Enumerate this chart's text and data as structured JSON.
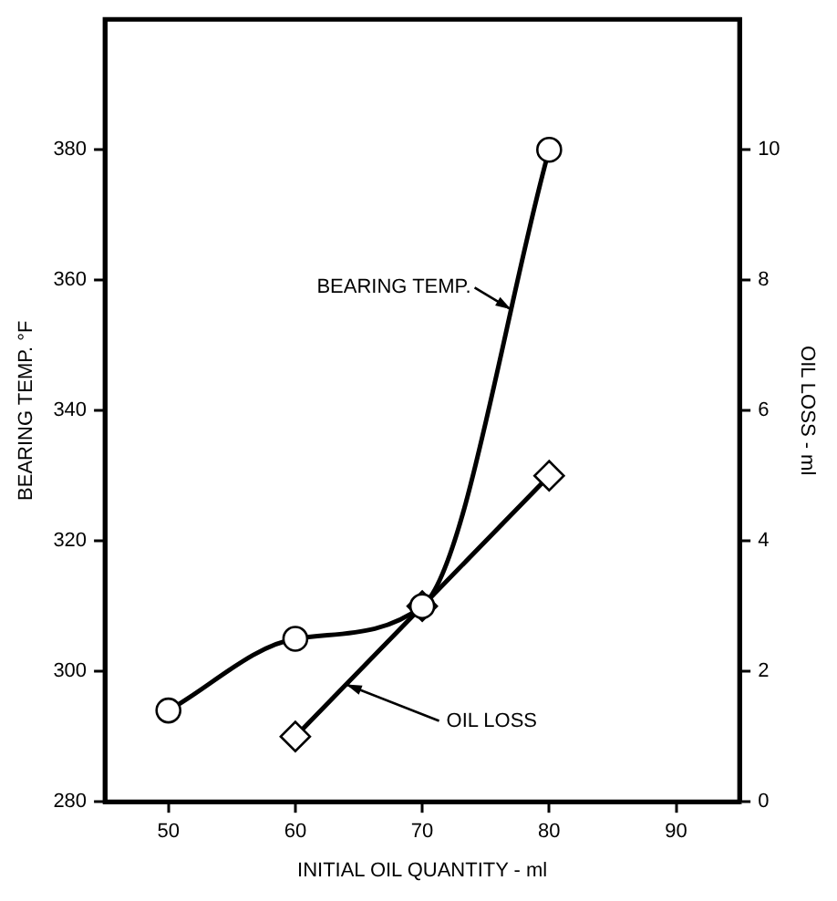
{
  "chart_data": {
    "type": "line",
    "xlabel": "INITIAL OIL QUANTITY - ml",
    "ylabel": "BEARING TEMP. °F",
    "y2label": "OIL LOSS - ml",
    "xlim": [
      45,
      95
    ],
    "xticks": [
      50,
      60,
      70,
      80,
      90
    ],
    "ylim": [
      280,
      400
    ],
    "yticks": [
      280,
      300,
      320,
      340,
      360,
      380
    ],
    "y2lim": [
      0,
      12
    ],
    "y2ticks": [
      0,
      2,
      4,
      6,
      8,
      10
    ],
    "series": [
      {
        "color": "#000000",
        "x": [
          50,
          60,
          70,
          80
        ],
        "values": [
          294,
          305,
          310,
          380
        ],
        "marker": "circle"
      },
      {
        "color": "#000000",
        "x": [
          60,
          70,
          80
        ],
        "values": [
          1,
          3,
          5
        ],
        "marker": "diamond",
        "axis": "y2"
      }
    ],
    "annotations": [
      "BEARING TEMP.",
      {
        "text": "OIL LOSS",
        "x": 64,
        "y": 298
      }
    ],
    "line_style": "solid"
  }
}
